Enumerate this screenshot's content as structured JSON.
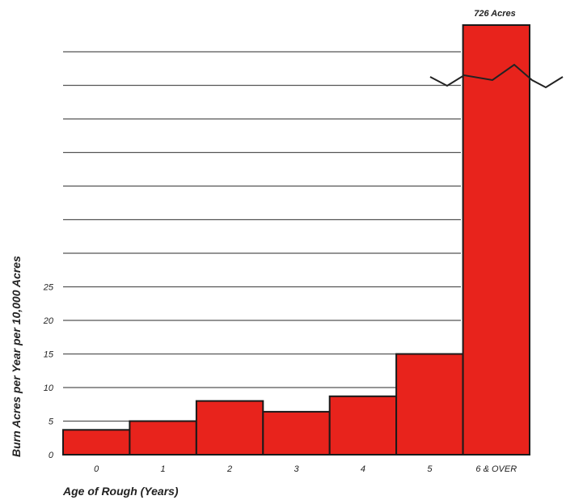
{
  "chart_data": {
    "type": "bar",
    "title": "",
    "xlabel": "Age of Rough (Years)",
    "ylabel": "Burn Acres per Year per 10,000 Acres",
    "categories": [
      "0",
      "1",
      "2",
      "3",
      "4",
      "5",
      "6 & OVER"
    ],
    "values": [
      3.7,
      5,
      8,
      6.4,
      8.7,
      15,
      726
    ],
    "y_ticks": [
      0,
      5,
      10,
      15,
      20,
      25
    ],
    "ylim": [
      0,
      25
    ],
    "axis_break": true,
    "grid": true,
    "bar_color": "#e8231c",
    "outline_color": "#1a1a1a",
    "annotation": "726 Acres"
  }
}
